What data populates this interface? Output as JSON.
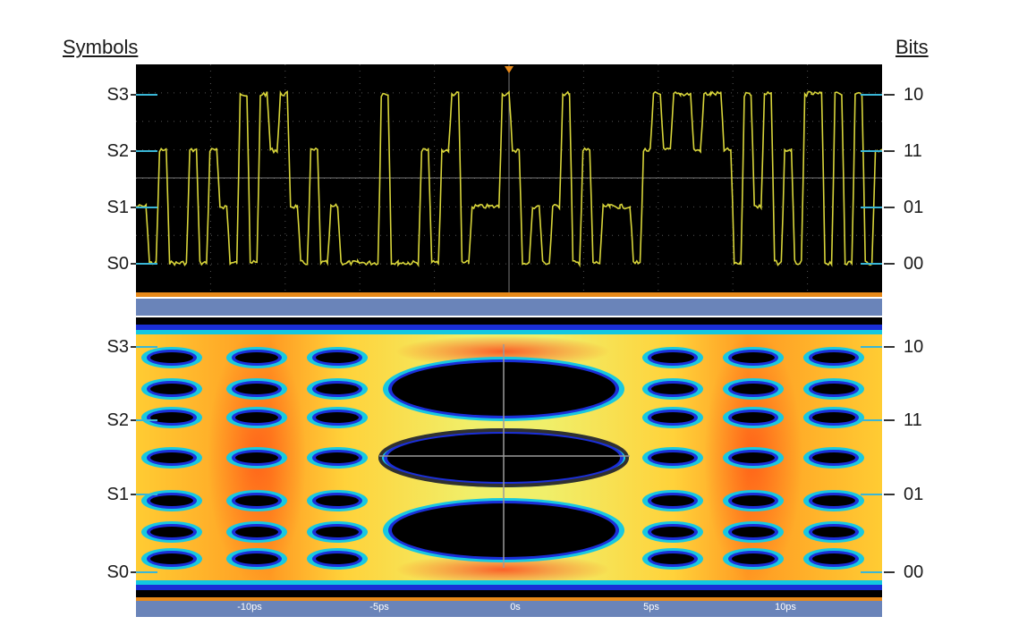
{
  "headers": {
    "left": "Symbols",
    "right": "Bits"
  },
  "levels": [
    {
      "symbol": "S3",
      "bits": "10"
    },
    {
      "symbol": "S2",
      "bits": "11"
    },
    {
      "symbol": "S1",
      "bits": "01"
    },
    {
      "symbol": "S0",
      "bits": "00"
    }
  ],
  "x_axis": {
    "ticks": [
      "-10ps",
      "-5ps",
      "0s",
      "5ps",
      "10ps"
    ]
  },
  "colors": {
    "trace": "#d8d53a",
    "background": "#000000",
    "axis_strip": "#6a84b9",
    "trigger": "#e88a1a",
    "level_marker": "#39b6d6"
  },
  "symbol_sequence": [
    1,
    0,
    2,
    0,
    0,
    2,
    0,
    2,
    1,
    0,
    3,
    0,
    3,
    2,
    3,
    1,
    0,
    2,
    0,
    1,
    0,
    0,
    0,
    0,
    3,
    0,
    0,
    0,
    2,
    0,
    2,
    3,
    0,
    1,
    1,
    1,
    3,
    2,
    0,
    1,
    0,
    1,
    3,
    0,
    2,
    0,
    1,
    1,
    1,
    0,
    2,
    3,
    2,
    3,
    3,
    2,
    3,
    3,
    2,
    0,
    3,
    1,
    3,
    0,
    2,
    0,
    3,
    3,
    0,
    3,
    0,
    3,
    0,
    2
  ]
}
